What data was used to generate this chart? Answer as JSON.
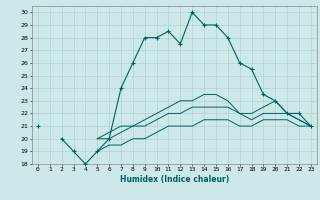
{
  "xlabel": "Humidex (Indice chaleur)",
  "x_values": [
    0,
    1,
    2,
    3,
    4,
    5,
    6,
    7,
    8,
    9,
    10,
    11,
    12,
    13,
    14,
    15,
    16,
    17,
    18,
    19,
    20,
    21,
    22,
    23
  ],
  "main_line": [
    21,
    null,
    20,
    19,
    18,
    19,
    20,
    24,
    26,
    28,
    28,
    28.5,
    27.5,
    30,
    29,
    29,
    28,
    26,
    25.5,
    23.5,
    23,
    22,
    22,
    21
  ],
  "line_low": [
    21,
    null,
    20,
    null,
    null,
    20,
    20.5,
    21,
    21,
    21.5,
    22,
    22.5,
    23,
    23,
    23.5,
    23.5,
    23,
    22,
    22,
    22.5,
    23,
    22,
    21.5,
    21
  ],
  "line_mid": [
    21,
    null,
    20,
    null,
    null,
    20,
    20,
    20.5,
    21,
    21,
    21.5,
    22,
    22,
    22.5,
    22.5,
    22.5,
    22.5,
    22,
    21.5,
    22,
    22,
    22,
    21.5,
    21
  ],
  "line_bot": [
    null,
    null,
    null,
    null,
    null,
    19,
    19.5,
    19.5,
    20,
    20,
    20.5,
    21,
    21,
    21,
    21.5,
    21.5,
    21.5,
    21,
    21,
    21.5,
    21.5,
    21.5,
    21,
    21
  ],
  "ylim": [
    18,
    30.5
  ],
  "xlim": [
    -0.5,
    23.5
  ],
  "yticks": [
    18,
    19,
    20,
    21,
    22,
    23,
    24,
    25,
    26,
    27,
    28,
    29,
    30
  ],
  "xticks": [
    0,
    1,
    2,
    3,
    4,
    5,
    6,
    7,
    8,
    9,
    10,
    11,
    12,
    13,
    14,
    15,
    16,
    17,
    18,
    19,
    20,
    21,
    22,
    23
  ],
  "line_color": "#006060",
  "bg_color": "#cce8e8",
  "grid_color": "#aacccc"
}
